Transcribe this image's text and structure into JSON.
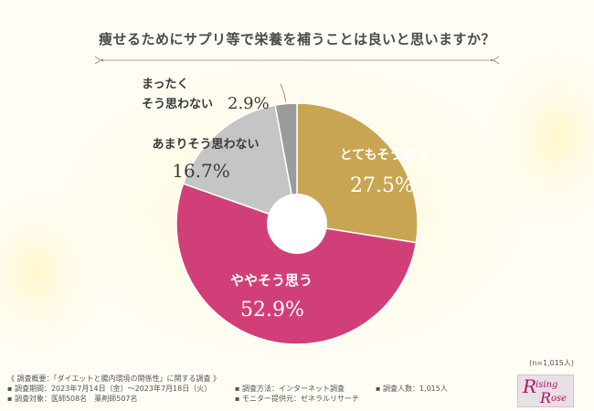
{
  "title": "痩せるためにサプリ等で栄養を補うことは良いと思いますか？",
  "n_count": "(n=1,015人)",
  "colors": {
    "gold": "#c8a552",
    "pink": "#d13f78",
    "lightgray": "#c5c5c5",
    "darkgray": "#9b9b9b",
    "line": "#8a8a8a"
  },
  "chart_data": {
    "type": "pie",
    "title": "痩せるためにサプリ等で栄養を補うことは良いと思いますか？",
    "slices": [
      {
        "label": "とてもそう思う",
        "value": 27.5,
        "value_text": "27.5%",
        "color": "#c8a552"
      },
      {
        "label": "ややそう思う",
        "value": 52.9,
        "value_text": "52.9%",
        "color": "#d13f78"
      },
      {
        "label": "あまりそう思わない",
        "value": 16.7,
        "value_text": "16.7%",
        "color": "#c5c5c5"
      },
      {
        "label_lines": [
          "まったく",
          "そう思わない"
        ],
        "value": 2.9,
        "value_text": "2.9%",
        "color": "#9b9b9b"
      }
    ]
  },
  "footer": {
    "line1": "《 調査概要：「ダイエットと腸内環境の関係性」に関する調査 》",
    "line2": "▪ 調査期間：2023年7月14日（金）～2023年7月18日（火）",
    "line3": "▪ 調査対象：医師508名　薬剤師507名",
    "method": "▪ 調査方法：インターネット調査",
    "provider": "▪ モニター提供元：ゼネラルリサーチ",
    "people": "▪ 調査人数：1,015人"
  },
  "logo": {
    "letter1": "R",
    "text1": "ising",
    "letter2": "R",
    "text2": "ose"
  }
}
